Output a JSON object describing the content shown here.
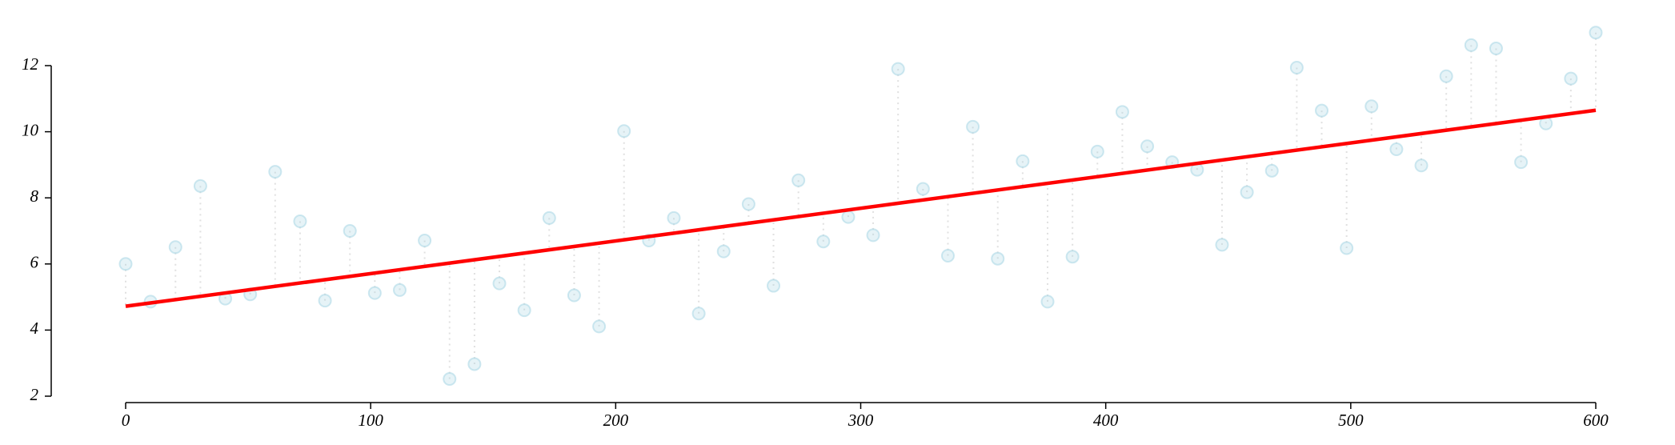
{
  "chart_data": {
    "type": "scatter",
    "series": [
      {
        "type": "scatter",
        "color": "#add8e6",
        "x": [
          0,
          10.17,
          20.34,
          30.51,
          40.68,
          50.85,
          61.02,
          71.19,
          81.36,
          91.53,
          101.69,
          111.86,
          122.03,
          132.2,
          142.37,
          152.54,
          162.71,
          172.88,
          183.05,
          193.22,
          203.39,
          213.56,
          223.73,
          233.9,
          244.07,
          254.24,
          264.41,
          274.58,
          284.75,
          294.92,
          305.08,
          315.25,
          325.42,
          335.59,
          345.76,
          355.93,
          366.1,
          376.27,
          386.44,
          396.61,
          406.78,
          416.95,
          427.12,
          437.29,
          447.46,
          457.63,
          467.8,
          477.97,
          488.14,
          498.31,
          508.47,
          518.64,
          528.81,
          538.98,
          549.15,
          559.32,
          569.49,
          579.66,
          589.83,
          600
        ],
        "values": [
          6.0,
          4.86,
          6.51,
          8.36,
          4.95,
          5.08,
          8.79,
          7.29,
          4.89,
          7.0,
          5.12,
          5.21,
          6.71,
          2.52,
          2.97,
          5.41,
          4.6,
          7.39,
          5.05,
          4.11,
          10.02,
          6.71,
          7.39,
          4.5,
          6.38,
          7.81,
          5.34,
          8.53,
          6.68,
          7.42,
          6.87,
          11.9,
          8.27,
          6.25,
          10.15,
          6.16,
          9.11,
          4.86,
          6.22,
          9.4,
          10.6,
          9.56,
          9.08,
          8.85,
          6.58,
          8.17,
          8.82,
          11.94,
          10.64,
          6.48,
          10.77,
          9.47,
          8.98,
          11.68,
          12.62,
          12.52,
          9.08,
          10.25,
          11.61,
          13.0
        ]
      },
      {
        "type": "line",
        "color": "#ff0000",
        "x": [
          0,
          600
        ],
        "values": [
          4.72,
          10.65
        ]
      }
    ],
    "residual_lines": true,
    "xlim": [
      0,
      600
    ],
    "xticks": [
      0,
      100,
      200,
      300,
      400,
      500,
      600
    ],
    "ylim": [
      2,
      12
    ],
    "yticks": [
      2,
      4,
      6,
      8,
      10,
      12
    ]
  }
}
